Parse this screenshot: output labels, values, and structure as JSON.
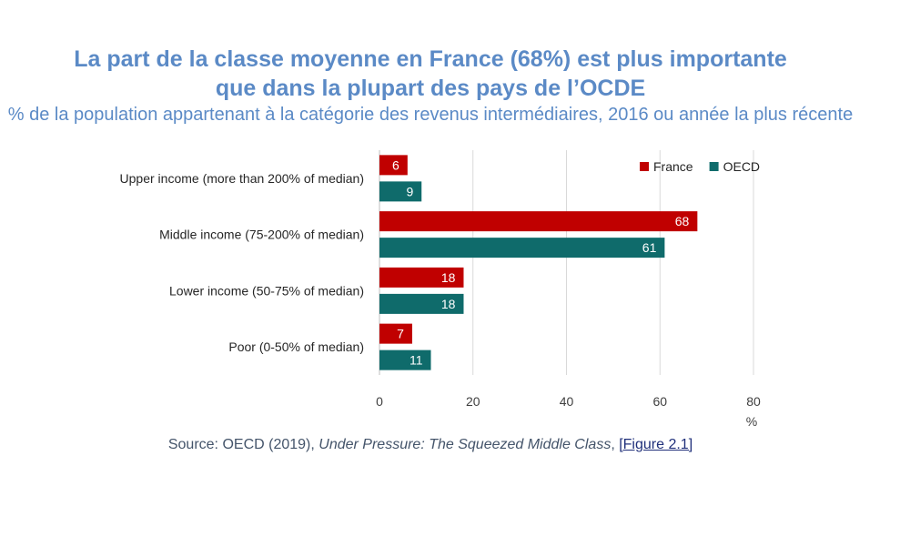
{
  "header": {
    "title_line1": "La part de la classe moyenne en France (68%) est plus importante",
    "title_line2": "que dans la plupart des pays de l’OCDE",
    "subtitle": "% de la population appartenant à la catégorie des revenus intermédiaires, 2016 ou année la plus récente"
  },
  "colors": {
    "france": "#c00000",
    "oecd": "#0f6b6b",
    "title": "#5b8ac6",
    "grid": "#d9d9d9"
  },
  "chart_data": {
    "type": "bar",
    "orientation": "horizontal",
    "categories": [
      "Upper income (more than 200% of median)",
      "Middle income (75-200% of median)",
      "Lower income (50-75% of median)",
      "Poor (0-50% of median)"
    ],
    "series": [
      {
        "name": "France",
        "values": [
          6,
          68,
          18,
          7
        ]
      },
      {
        "name": "OECD",
        "values": [
          9,
          61,
          18,
          11
        ]
      }
    ],
    "xlim": [
      0,
      80
    ],
    "xticks": [
      0,
      20,
      40,
      60,
      80
    ],
    "xlabel": "%",
    "grid": true,
    "legend": "top-right"
  },
  "source": {
    "prefix": "Source: OECD (2019), ",
    "italic": "Under Pressure: The Squeezed Middle Class",
    "separator": ", ",
    "link": "[Figure 2.1]"
  }
}
